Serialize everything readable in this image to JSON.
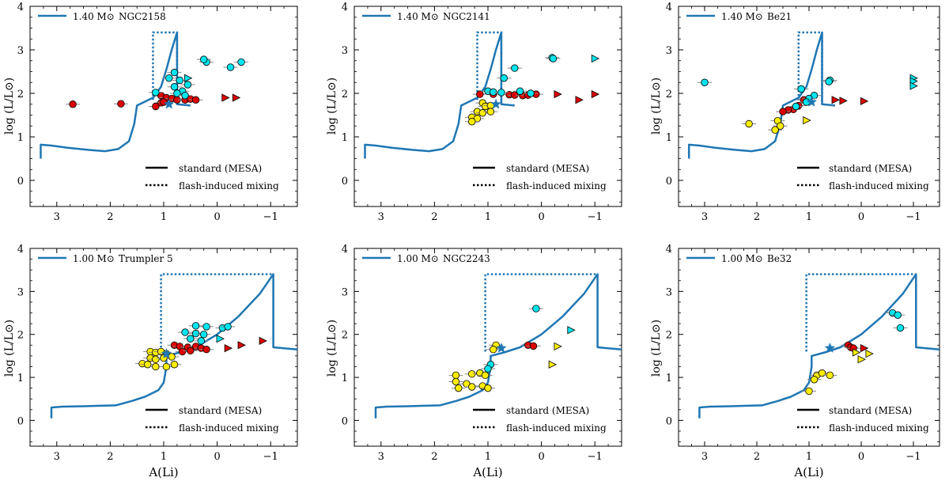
{
  "figure": {
    "xlabel": "A(Li)",
    "ylabel": "log (L/L⊙)",
    "legend": {
      "solid": "standard (MESA)",
      "dotted": "flash-induced mixing"
    },
    "colors": {
      "track": "#1f77b4",
      "cyan": "#00e5ee",
      "red": "#dd0000",
      "yellow": "#ffee00",
      "star": "#1f77b4",
      "errorbar": "#888888"
    }
  },
  "chart_data": [
    {
      "type": "scatter",
      "mass_label": "1.40 M⊙",
      "cluster": "NGC2158",
      "xlim": [
        3.5,
        -1.5
      ],
      "ylim": [
        -0.6,
        4.0
      ],
      "x_ticks": [
        3,
        2,
        1,
        0,
        -1
      ],
      "y_ticks": [
        0,
        1,
        2,
        3,
        4
      ],
      "track_standard": [
        [
          3.3,
          0.5
        ],
        [
          3.3,
          0.82
        ],
        [
          3.1,
          0.8
        ],
        [
          2.8,
          0.75
        ],
        [
          2.4,
          0.7
        ],
        [
          2.1,
          0.67
        ],
        [
          1.85,
          0.72
        ],
        [
          1.65,
          0.9
        ],
        [
          1.55,
          1.3
        ],
        [
          1.5,
          1.72
        ],
        [
          1.2,
          1.9
        ],
        [
          1.05,
          2.15
        ],
        [
          0.95,
          2.55
        ],
        [
          0.85,
          3.0
        ],
        [
          0.75,
          3.4
        ],
        [
          0.75,
          1.75
        ],
        [
          0.5,
          1.72
        ]
      ],
      "track_flash": [
        [
          1.2,
          1.85
        ],
        [
          1.2,
          3.4
        ],
        [
          0.75,
          3.4
        ],
        [
          0.75,
          1.75
        ]
      ],
      "cyan": [
        [
          0.2,
          2.72
        ],
        [
          0.25,
          2.78
        ],
        [
          -0.25,
          2.6
        ],
        [
          -0.45,
          2.72
        ],
        [
          0.8,
          2.48
        ],
        [
          0.9,
          2.35
        ],
        [
          0.7,
          2.3
        ],
        [
          0.55,
          2.2
        ],
        [
          0.8,
          2.15
        ],
        [
          0.65,
          2.05
        ],
        [
          1.15,
          2.02
        ],
        [
          0.75,
          2.0
        ],
        [
          0.6,
          1.95
        ]
      ],
      "red": [
        [
          2.7,
          1.75
        ],
        [
          1.8,
          1.76
        ],
        [
          1.05,
          1.95
        ],
        [
          0.95,
          1.9
        ],
        [
          0.85,
          1.88
        ],
        [
          0.75,
          1.85
        ],
        [
          0.6,
          1.85
        ],
        [
          0.5,
          1.87
        ],
        [
          0.4,
          1.85
        ],
        [
          1.05,
          1.78
        ],
        [
          1.15,
          1.7
        ],
        [
          1.0,
          1.8
        ]
      ],
      "cyan_limits": [
        [
          0.55,
          2.35
        ]
      ],
      "red_limits": [
        [
          -0.15,
          1.9
        ],
        [
          -0.35,
          1.9
        ]
      ],
      "yellow": [],
      "yellow_limits": [],
      "star": [
        0.9,
        1.75
      ]
    },
    {
      "type": "scatter",
      "mass_label": "1.40 M⊙",
      "cluster": "NGC2141",
      "xlim": [
        3.5,
        -1.5
      ],
      "ylim": [
        -0.6,
        4.0
      ],
      "x_ticks": [
        3,
        2,
        1,
        0,
        -1
      ],
      "y_ticks": [
        0,
        1,
        2,
        3,
        4
      ],
      "track_standard": [
        [
          3.3,
          0.5
        ],
        [
          3.3,
          0.82
        ],
        [
          3.1,
          0.8
        ],
        [
          2.8,
          0.75
        ],
        [
          2.4,
          0.7
        ],
        [
          2.1,
          0.67
        ],
        [
          1.85,
          0.72
        ],
        [
          1.65,
          0.9
        ],
        [
          1.55,
          1.3
        ],
        [
          1.5,
          1.72
        ],
        [
          1.2,
          1.9
        ],
        [
          1.05,
          2.15
        ],
        [
          0.95,
          2.55
        ],
        [
          0.85,
          3.0
        ],
        [
          0.75,
          3.4
        ],
        [
          0.75,
          1.75
        ],
        [
          0.5,
          1.72
        ]
      ],
      "track_flash": [
        [
          1.2,
          1.85
        ],
        [
          1.2,
          3.4
        ],
        [
          0.75,
          3.4
        ],
        [
          0.75,
          1.75
        ]
      ],
      "cyan": [
        [
          -0.2,
          2.82
        ],
        [
          -0.22,
          2.8
        ],
        [
          0.5,
          2.58
        ],
        [
          0.7,
          2.35
        ],
        [
          1.0,
          2.05
        ],
        [
          0.9,
          2.03
        ],
        [
          0.75,
          2.02
        ],
        [
          0.4,
          2.05
        ],
        [
          0.2,
          2.0
        ]
      ],
      "red": [
        [
          1.15,
          1.98
        ],
        [
          0.9,
          1.98
        ],
        [
          0.6,
          1.97
        ],
        [
          0.5,
          1.96
        ],
        [
          0.35,
          1.95
        ],
        [
          0.25,
          1.96
        ],
        [
          0.1,
          1.98
        ]
      ],
      "cyan_limits": [
        [
          -1.0,
          2.8
        ]
      ],
      "red_limits": [
        [
          -0.3,
          1.98
        ],
        [
          -0.7,
          1.85
        ],
        [
          -1.0,
          1.98
        ]
      ],
      "yellow": [
        [
          1.1,
          1.78
        ],
        [
          1.05,
          1.7
        ],
        [
          0.95,
          1.72
        ],
        [
          1.2,
          1.58
        ],
        [
          1.1,
          1.55
        ],
        [
          0.95,
          1.58
        ],
        [
          1.3,
          1.45
        ],
        [
          1.2,
          1.42
        ],
        [
          1.3,
          1.35
        ]
      ],
      "yellow_limits": [],
      "star": [
        0.85,
        1.75
      ]
    },
    {
      "type": "scatter",
      "mass_label": "1.40 M⊙",
      "cluster": "Be21",
      "xlim": [
        3.5,
        -1.5
      ],
      "ylim": [
        -0.6,
        4.0
      ],
      "x_ticks": [
        3,
        2,
        1,
        0,
        -1
      ],
      "y_ticks": [
        0,
        1,
        2,
        3,
        4
      ],
      "track_standard": [
        [
          3.3,
          0.5
        ],
        [
          3.3,
          0.82
        ],
        [
          3.1,
          0.8
        ],
        [
          2.8,
          0.75
        ],
        [
          2.4,
          0.7
        ],
        [
          2.1,
          0.67
        ],
        [
          1.85,
          0.72
        ],
        [
          1.65,
          0.9
        ],
        [
          1.55,
          1.3
        ],
        [
          1.5,
          1.72
        ],
        [
          1.2,
          1.9
        ],
        [
          1.05,
          2.15
        ],
        [
          0.95,
          2.55
        ],
        [
          0.85,
          3.0
        ],
        [
          0.75,
          3.4
        ],
        [
          0.75,
          1.75
        ],
        [
          0.5,
          1.72
        ]
      ],
      "track_flash": [
        [
          1.2,
          1.85
        ],
        [
          1.2,
          3.4
        ],
        [
          0.75,
          3.4
        ],
        [
          0.75,
          1.75
        ]
      ],
      "cyan": [
        [
          3.0,
          2.25
        ],
        [
          0.6,
          2.3
        ],
        [
          0.62,
          2.27
        ],
        [
          1.15,
          2.1
        ],
        [
          0.9,
          1.95
        ],
        [
          1.0,
          1.88
        ],
        [
          1.05,
          1.8
        ],
        [
          1.25,
          1.7
        ]
      ],
      "red": [
        [
          1.1,
          1.85
        ],
        [
          1.2,
          1.72
        ],
        [
          1.3,
          1.63
        ],
        [
          1.4,
          1.62
        ],
        [
          1.5,
          1.58
        ]
      ],
      "cyan_limits": [
        [
          -1.0,
          2.35
        ],
        [
          -1.0,
          2.28
        ],
        [
          -1.0,
          2.17
        ]
      ],
      "red_limits": [
        [
          0.5,
          1.85
        ],
        [
          0.35,
          1.83
        ],
        [
          -0.05,
          1.82
        ]
      ],
      "yellow": [
        [
          2.15,
          1.3
        ],
        [
          1.6,
          1.37
        ],
        [
          1.55,
          1.25
        ],
        [
          1.65,
          1.16
        ]
      ],
      "yellow_limits": [
        [
          1.05,
          1.38
        ]
      ],
      "star": [
        0.95,
        1.8
      ]
    },
    {
      "type": "scatter",
      "mass_label": "1.00 M⊙",
      "cluster": "Trumpler 5",
      "xlim": [
        3.5,
        -1.5
      ],
      "ylim": [
        -0.6,
        4.0
      ],
      "x_ticks": [
        3,
        2,
        1,
        0,
        -1
      ],
      "y_ticks": [
        0,
        1,
        2,
        3,
        4
      ],
      "track_standard": [
        [
          3.1,
          0.05
        ],
        [
          3.1,
          0.3
        ],
        [
          2.9,
          0.32
        ],
        [
          2.5,
          0.33
        ],
        [
          2.2,
          0.34
        ],
        [
          1.9,
          0.35
        ],
        [
          1.6,
          0.45
        ],
        [
          1.35,
          0.55
        ],
        [
          1.1,
          0.7
        ],
        [
          1.0,
          0.88
        ],
        [
          0.95,
          1.25
        ],
        [
          0.95,
          1.5
        ],
        [
          0.7,
          1.58
        ],
        [
          0.4,
          1.7
        ],
        [
          0.0,
          2.0
        ],
        [
          -0.4,
          2.42
        ],
        [
          -0.8,
          2.95
        ],
        [
          -1.05,
          3.4
        ],
        [
          -1.05,
          1.7
        ],
        [
          -1.5,
          1.65
        ]
      ],
      "track_flash": [
        [
          1.05,
          1.6
        ],
        [
          1.05,
          3.4
        ],
        [
          -1.05,
          3.4
        ]
      ],
      "cyan": [
        [
          0.4,
          2.2
        ],
        [
          0.2,
          2.18
        ],
        [
          -0.1,
          2.15
        ],
        [
          -0.2,
          2.18
        ],
        [
          0.6,
          2.05
        ],
        [
          0.4,
          2.02
        ],
        [
          0.25,
          2.0
        ],
        [
          0.5,
          1.9
        ],
        [
          0.3,
          1.85
        ]
      ],
      "red": [
        [
          0.8,
          1.75
        ],
        [
          0.7,
          1.72
        ],
        [
          0.55,
          1.7
        ],
        [
          0.4,
          1.72
        ],
        [
          0.3,
          1.68
        ],
        [
          0.65,
          1.6
        ],
        [
          0.5,
          1.62
        ],
        [
          0.2,
          1.65
        ]
      ],
      "cyan_limits": [
        [
          -0.05,
          1.9
        ]
      ],
      "red_limits": [
        [
          -0.2,
          1.68
        ],
        [
          -0.45,
          1.75
        ],
        [
          -0.85,
          1.85
        ]
      ],
      "yellow": [
        [
          1.25,
          1.6
        ],
        [
          1.15,
          1.58
        ],
        [
          1.05,
          1.6
        ],
        [
          0.95,
          1.55
        ],
        [
          1.25,
          1.45
        ],
        [
          1.15,
          1.42
        ],
        [
          1.0,
          1.45
        ],
        [
          0.85,
          1.48
        ],
        [
          1.4,
          1.32
        ],
        [
          1.3,
          1.3
        ],
        [
          1.15,
          1.25
        ],
        [
          0.95,
          1.25
        ],
        [
          0.8,
          1.3
        ]
      ],
      "yellow_limits": [],
      "star": [
        0.95,
        1.55
      ]
    },
    {
      "type": "scatter",
      "mass_label": "1.00 M⊙",
      "cluster": "NGC2243",
      "xlim": [
        3.5,
        -1.5
      ],
      "ylim": [
        -0.6,
        4.0
      ],
      "x_ticks": [
        3,
        2,
        1,
        0,
        -1
      ],
      "y_ticks": [
        0,
        1,
        2,
        3,
        4
      ],
      "track_standard": [
        [
          3.1,
          0.05
        ],
        [
          3.1,
          0.3
        ],
        [
          2.9,
          0.32
        ],
        [
          2.5,
          0.33
        ],
        [
          2.2,
          0.34
        ],
        [
          1.9,
          0.35
        ],
        [
          1.6,
          0.45
        ],
        [
          1.35,
          0.55
        ],
        [
          1.1,
          0.7
        ],
        [
          1.0,
          0.88
        ],
        [
          0.95,
          1.25
        ],
        [
          0.95,
          1.5
        ],
        [
          0.7,
          1.58
        ],
        [
          0.4,
          1.7
        ],
        [
          0.0,
          2.0
        ],
        [
          -0.4,
          2.42
        ],
        [
          -0.8,
          2.95
        ],
        [
          -1.05,
          3.4
        ],
        [
          -1.05,
          1.7
        ],
        [
          -1.5,
          1.65
        ]
      ],
      "track_flash": [
        [
          1.05,
          1.6
        ],
        [
          1.05,
          3.4
        ],
        [
          -1.05,
          3.4
        ]
      ],
      "cyan": [
        [
          0.1,
          2.6
        ],
        [
          0.95,
          1.3
        ],
        [
          1.0,
          1.2
        ]
      ],
      "red": [
        [
          0.25,
          1.75
        ],
        [
          0.15,
          1.73
        ]
      ],
      "cyan_limits": [
        [
          -0.55,
          2.1
        ]
      ],
      "red_limits": [],
      "yellow": [
        [
          0.85,
          1.75
        ],
        [
          0.9,
          1.65
        ],
        [
          1.6,
          1.05
        ],
        [
          1.3,
          1.08
        ],
        [
          1.15,
          1.1
        ],
        [
          1.05,
          1.05
        ],
        [
          1.6,
          0.9
        ],
        [
          1.4,
          0.85
        ],
        [
          1.55,
          0.75
        ],
        [
          1.3,
          0.78
        ],
        [
          1.1,
          0.8
        ],
        [
          1.0,
          0.75
        ]
      ],
      "yellow_limits": [
        [
          -0.3,
          1.72
        ],
        [
          -0.2,
          1.3
        ]
      ],
      "star": [
        0.75,
        1.68
      ]
    },
    {
      "type": "scatter",
      "mass_label": "1.00 M⊙",
      "cluster": "Be32",
      "xlim": [
        3.5,
        -1.5
      ],
      "ylim": [
        -0.6,
        4.0
      ],
      "x_ticks": [
        3,
        2,
        1,
        0,
        -1
      ],
      "y_ticks": [
        0,
        1,
        2,
        3,
        4
      ],
      "track_standard": [
        [
          3.1,
          0.05
        ],
        [
          3.1,
          0.3
        ],
        [
          2.9,
          0.32
        ],
        [
          2.5,
          0.33
        ],
        [
          2.2,
          0.34
        ],
        [
          1.9,
          0.35
        ],
        [
          1.6,
          0.45
        ],
        [
          1.35,
          0.55
        ],
        [
          1.1,
          0.7
        ],
        [
          1.0,
          0.88
        ],
        [
          0.95,
          1.25
        ],
        [
          0.95,
          1.5
        ],
        [
          0.7,
          1.58
        ],
        [
          0.4,
          1.7
        ],
        [
          0.0,
          2.0
        ],
        [
          -0.4,
          2.42
        ],
        [
          -0.8,
          2.95
        ],
        [
          -1.05,
          3.4
        ],
        [
          -1.05,
          1.7
        ],
        [
          -1.5,
          1.65
        ]
      ],
      "track_flash": [
        [
          1.05,
          1.6
        ],
        [
          1.05,
          3.4
        ],
        [
          -1.05,
          3.4
        ]
      ],
      "cyan": [
        [
          -0.6,
          2.5
        ],
        [
          -0.7,
          2.45
        ],
        [
          -0.75,
          2.15
        ]
      ],
      "red": [
        [
          0.25,
          1.75
        ],
        [
          0.2,
          1.7
        ],
        [
          0.15,
          1.68
        ]
      ],
      "cyan_limits": [],
      "red_limits": [
        [
          -0.05,
          1.68
        ]
      ],
      "yellow": [
        [
          0.85,
          1.05
        ],
        [
          0.75,
          1.1
        ],
        [
          0.6,
          1.05
        ],
        [
          0.9,
          0.95
        ],
        [
          1.0,
          0.68
        ]
      ],
      "yellow_limits": [
        [
          0.1,
          1.58
        ],
        [
          0.0,
          1.42
        ],
        [
          -0.15,
          1.55
        ]
      ],
      "star": [
        0.6,
        1.68
      ]
    }
  ]
}
